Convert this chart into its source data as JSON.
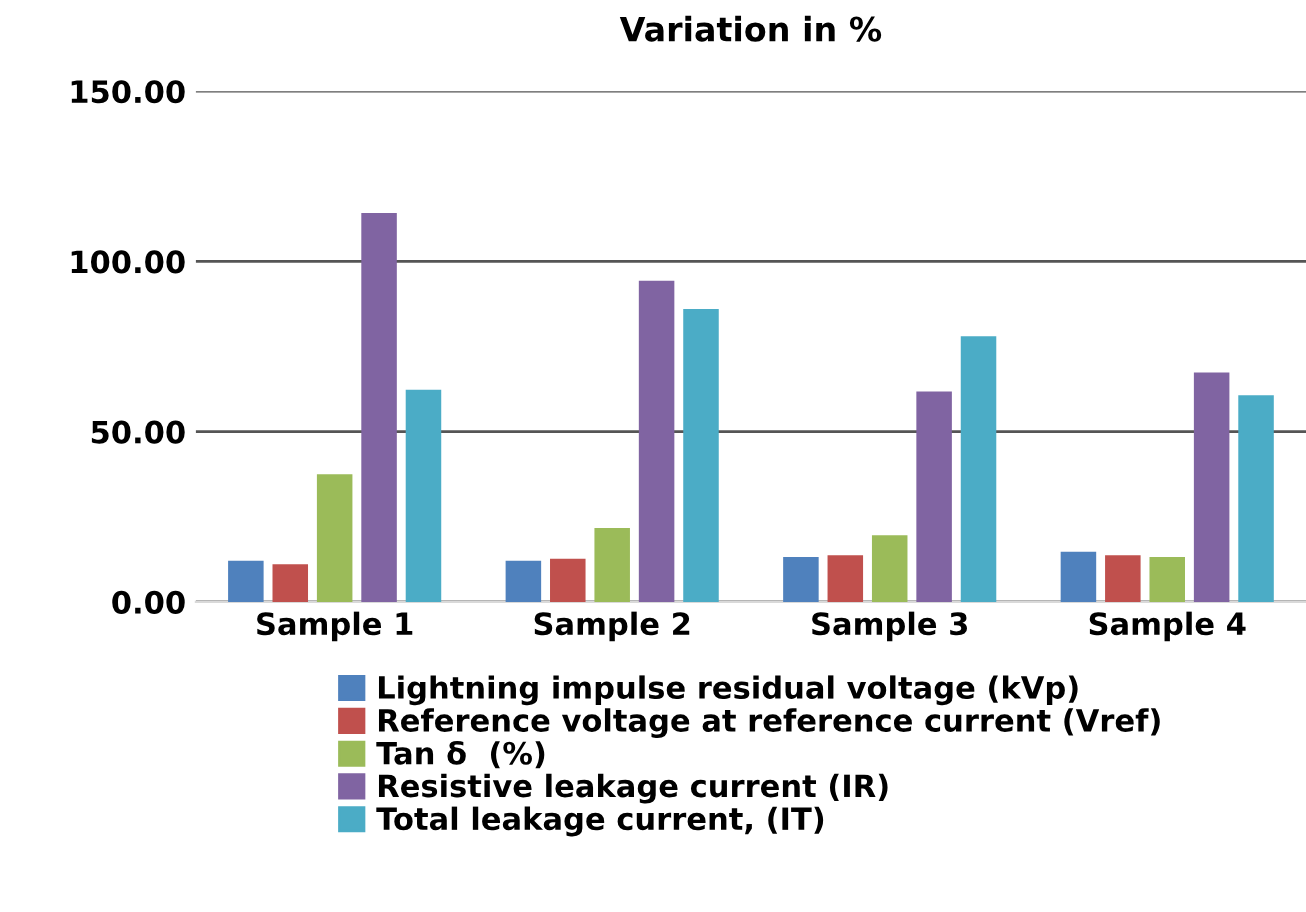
{
  "chart_data": {
    "type": "bar",
    "title": "Variation in %",
    "categories": [
      "Sample 1",
      "Sample 2",
      "Sample 3",
      "Sample 4"
    ],
    "series": [
      {
        "name": "Lightning impulse residual voltage (kVp)",
        "color": "#4f81bd",
        "values": [
          12.1,
          12.1,
          13.2,
          14.7
        ]
      },
      {
        "name": "Reference voltage at reference current (Vref)",
        "color": "#c0504d",
        "values": [
          11.1,
          12.7,
          13.7,
          13.7
        ]
      },
      {
        "name": "Tan δ  (%)",
        "color": "#9bbb59",
        "values": [
          37.5,
          21.7,
          19.6,
          13.2
        ]
      },
      {
        "name": "Resistive leakage current (IR)",
        "color": "#8064a2",
        "values": [
          114.2,
          94.3,
          61.8,
          67.4
        ]
      },
      {
        "name": "Total leakage current, (IT)",
        "color": "#4bacc6",
        "values": [
          62.3,
          86.0,
          78.0,
          60.7
        ]
      }
    ],
    "ylim": [
      0,
      150
    ],
    "yticks": [
      {
        "value": 0,
        "label": "0.00"
      },
      {
        "value": 50,
        "label": "50.00"
      },
      {
        "value": 100,
        "label": "100.00"
      },
      {
        "value": 150,
        "label": "150.00"
      }
    ],
    "grid": "y",
    "legend": "bottom"
  }
}
